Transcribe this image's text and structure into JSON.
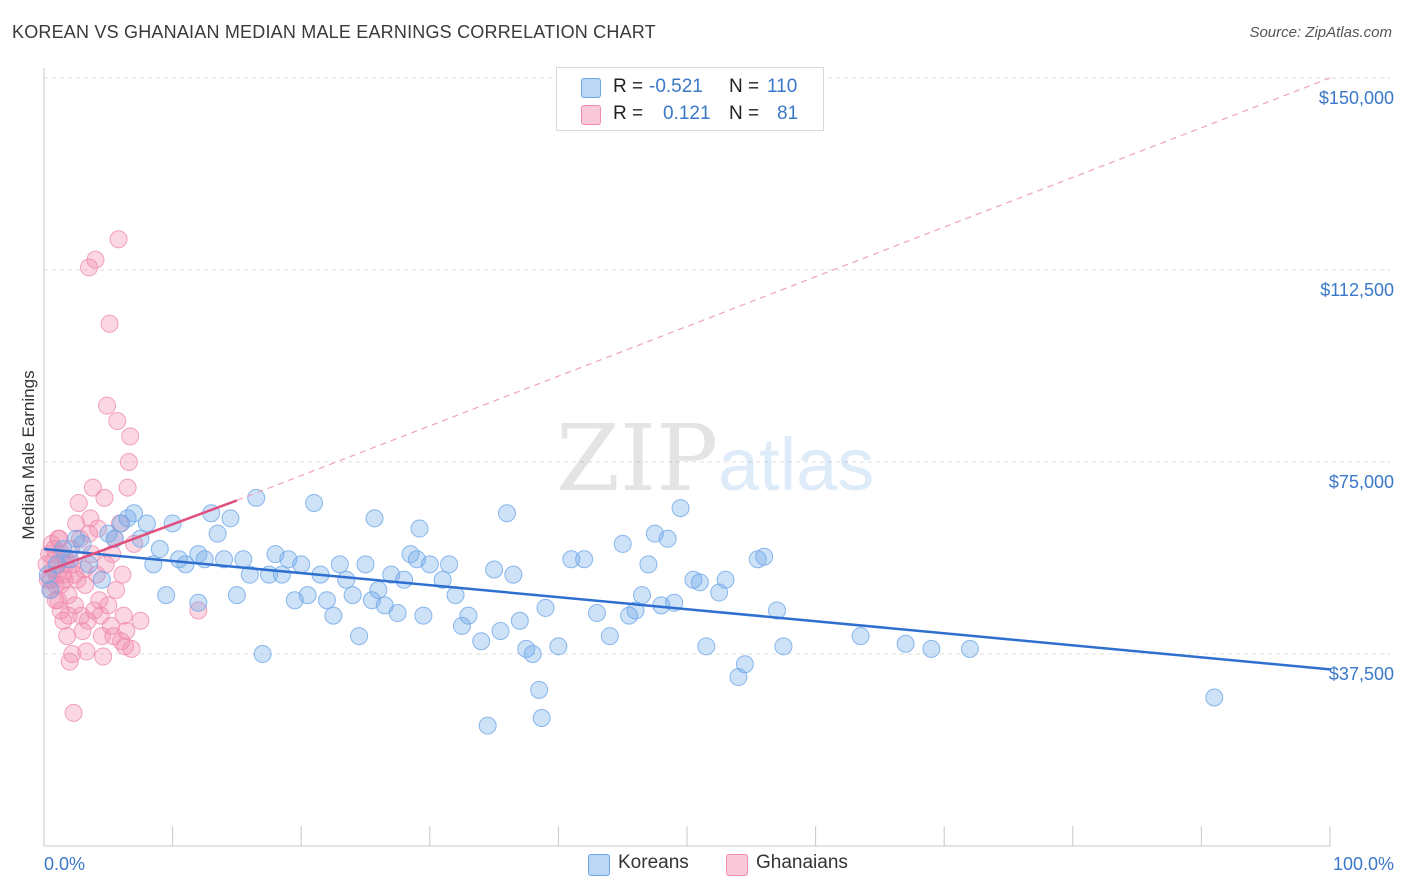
{
  "header": {
    "title": "KOREAN VS GHANAIAN MEDIAN MALE EARNINGS CORRELATION CHART",
    "source": "Source: ZipAtlas.com"
  },
  "watermark": {
    "zip": "ZIP",
    "atlas": "atlas"
  },
  "legend": {
    "rows": [
      {
        "r_label": "R =",
        "r_value": "-0.521",
        "n_label": "N =",
        "n_value": "110",
        "color": "#6fa8e8"
      },
      {
        "r_label": "R =",
        "r_value": "0.121",
        "n_label": "N =",
        "n_value": "81",
        "color": "#f08cb0"
      }
    ]
  },
  "bottom_legend": {
    "koreans": "Koreans",
    "ghanaians": "Ghanaians"
  },
  "chart_data": {
    "type": "scatter",
    "ylabel": "Median Male Earnings",
    "x_tick_labels": [
      "0.0%",
      "100.0%"
    ],
    "y_tick_labels": [
      "$150,000",
      "$112,500",
      "$75,000",
      "$37,500"
    ],
    "y_ticks": [
      150000,
      112500,
      75000,
      37500
    ],
    "xlim": [
      0,
      100
    ],
    "ylim": [
      0,
      155000
    ],
    "grid": "horizontal dashed",
    "colors": {
      "koreans": "#6fa8e8",
      "koreans_line": "#2e6fd0",
      "ghanaians": "#f08cb0",
      "ghanaians_line": "#e0507f"
    },
    "series": [
      {
        "name": "Koreans",
        "trend": {
          "x0": 0,
          "y0": 58000,
          "x1": 100,
          "y1": 34500
        },
        "points": [
          [
            0.5,
            50000
          ],
          [
            1,
            55000
          ],
          [
            1.5,
            58000
          ],
          [
            2,
            56000
          ],
          [
            2.5,
            60000
          ],
          [
            3,
            59000
          ],
          [
            3.5,
            55000
          ],
          [
            4.5,
            52000
          ],
          [
            5,
            61000
          ],
          [
            5.5,
            60000
          ],
          [
            6,
            63000
          ],
          [
            6.5,
            64000
          ],
          [
            7,
            65000
          ],
          [
            7.5,
            60000
          ],
          [
            8,
            63000
          ],
          [
            8.5,
            55000
          ],
          [
            9,
            58000
          ],
          [
            9.5,
            49000
          ],
          [
            10,
            63000
          ],
          [
            10.5,
            56000
          ],
          [
            11,
            55000
          ],
          [
            12,
            57000
          ],
          [
            12.5,
            56000
          ],
          [
            12,
            47500
          ],
          [
            13,
            65000
          ],
          [
            13.5,
            61000
          ],
          [
            14,
            56000
          ],
          [
            14.5,
            64000
          ],
          [
            15,
            49000
          ],
          [
            15.5,
            56000
          ],
          [
            16,
            53000
          ],
          [
            16.5,
            68000
          ],
          [
            17,
            37500
          ],
          [
            17.5,
            53000
          ],
          [
            18,
            57000
          ],
          [
            18.5,
            53000
          ],
          [
            19,
            56000
          ],
          [
            19.5,
            48000
          ],
          [
            20,
            55000
          ],
          [
            20.5,
            49000
          ],
          [
            21,
            67000
          ],
          [
            21.5,
            53000
          ],
          [
            22,
            48000
          ],
          [
            22.5,
            45000
          ],
          [
            23,
            55000
          ],
          [
            23.5,
            52000
          ],
          [
            24,
            49000
          ],
          [
            24.5,
            41000
          ],
          [
            25,
            55000
          ],
          [
            25.5,
            48000
          ],
          [
            25.7,
            64000
          ],
          [
            26,
            50000
          ],
          [
            26.5,
            47000
          ],
          [
            27,
            53000
          ],
          [
            27.5,
            45500
          ],
          [
            28,
            52000
          ],
          [
            28.5,
            57000
          ],
          [
            29,
            56000
          ],
          [
            29.5,
            45000
          ],
          [
            29.2,
            62000
          ],
          [
            30,
            55000
          ],
          [
            31,
            52000
          ],
          [
            31.5,
            55000
          ],
          [
            32,
            49000
          ],
          [
            32.5,
            43000
          ],
          [
            33,
            45000
          ],
          [
            34,
            40000
          ],
          [
            34.5,
            23500
          ],
          [
            35,
            54000
          ],
          [
            35.5,
            42000
          ],
          [
            36,
            65000
          ],
          [
            36.5,
            53000
          ],
          [
            37,
            44000
          ],
          [
            37.5,
            38500
          ],
          [
            38,
            37500
          ],
          [
            38.5,
            30500
          ],
          [
            38.7,
            25000
          ],
          [
            39,
            46500
          ],
          [
            40,
            39000
          ],
          [
            41,
            56000
          ],
          [
            42,
            56000
          ],
          [
            43,
            45500
          ],
          [
            44,
            41000
          ],
          [
            45,
            59000
          ],
          [
            45.5,
            45000
          ],
          [
            46,
            46000
          ],
          [
            46.5,
            49000
          ],
          [
            47,
            55000
          ],
          [
            47.5,
            61000
          ],
          [
            48,
            47000
          ],
          [
            48.5,
            60000
          ],
          [
            49,
            47500
          ],
          [
            49.5,
            66000
          ],
          [
            50.5,
            52000
          ],
          [
            51,
            51500
          ],
          [
            51.5,
            39000
          ],
          [
            52.5,
            49500
          ],
          [
            53,
            52000
          ],
          [
            54,
            33000
          ],
          [
            54.5,
            35500
          ],
          [
            55.5,
            56000
          ],
          [
            56,
            56500
          ],
          [
            57,
            46000
          ],
          [
            57.5,
            39000
          ],
          [
            63.5,
            41000
          ],
          [
            67,
            39500
          ],
          [
            69,
            38500
          ],
          [
            72,
            38500
          ],
          [
            91,
            29000
          ],
          [
            0.3,
            53000
          ]
        ]
      },
      {
        "name": "Ghanaians",
        "trend": {
          "x0": 0,
          "y0": 53500,
          "x1": 15,
          "y1": 67500,
          "dash_x1": 100,
          "dash_y1": 150000
        },
        "points": [
          [
            0.2,
            55000
          ],
          [
            0.3,
            52000
          ],
          [
            0.4,
            57000
          ],
          [
            0.5,
            50000
          ],
          [
            0.6,
            59000
          ],
          [
            0.7,
            54000
          ],
          [
            0.8,
            56000
          ],
          [
            0.9,
            51000
          ],
          [
            1,
            53000
          ],
          [
            1.1,
            48000
          ],
          [
            1.2,
            60000
          ],
          [
            1.3,
            46000
          ],
          [
            1.4,
            57000
          ],
          [
            1.5,
            44000
          ],
          [
            1.6,
            52000
          ],
          [
            1.7,
            55000
          ],
          [
            1.8,
            41000
          ],
          [
            1.9,
            49000
          ],
          [
            2,
            36000
          ],
          [
            2.1,
            58000
          ],
          [
            2.2,
            37500
          ],
          [
            2.3,
            26000
          ],
          [
            2.4,
            47000
          ],
          [
            2.5,
            63000
          ],
          [
            2.6,
            52000
          ],
          [
            2.7,
            67000
          ],
          [
            2.8,
            60000
          ],
          [
            2.9,
            45000
          ],
          [
            3,
            42000
          ],
          [
            3.1,
            54000
          ],
          [
            3.2,
            51000
          ],
          [
            3.3,
            38000
          ],
          [
            3.4,
            44000
          ],
          [
            3.5,
            113000
          ],
          [
            3.6,
            64000
          ],
          [
            3.7,
            57000
          ],
          [
            3.8,
            70000
          ],
          [
            3.9,
            46000
          ],
          [
            4,
            114500
          ],
          [
            4.1,
            53000
          ],
          [
            4.2,
            62000
          ],
          [
            4.3,
            48000
          ],
          [
            4.4,
            45000
          ],
          [
            4.5,
            41000
          ],
          [
            4.6,
            37000
          ],
          [
            4.7,
            68000
          ],
          [
            4.8,
            55000
          ],
          [
            4.9,
            86000
          ],
          [
            5,
            47000
          ],
          [
            5.1,
            102000
          ],
          [
            5.2,
            43000
          ],
          [
            5.3,
            57000
          ],
          [
            5.4,
            41000
          ],
          [
            5.5,
            60000
          ],
          [
            5.6,
            50000
          ],
          [
            5.7,
            83000
          ],
          [
            5.8,
            118500
          ],
          [
            5.9,
            63000
          ],
          [
            6,
            40000
          ],
          [
            6.1,
            53000
          ],
          [
            6.2,
            45000
          ],
          [
            6.3,
            39000
          ],
          [
            6.4,
            42000
          ],
          [
            6.5,
            70000
          ],
          [
            6.6,
            75000
          ],
          [
            6.7,
            80000
          ],
          [
            6.8,
            38500
          ],
          [
            7,
            59000
          ],
          [
            7.5,
            44000
          ],
          [
            12,
            46000
          ],
          [
            0.8,
            58000
          ],
          [
            1.5,
            53000
          ],
          [
            0.9,
            48000
          ],
          [
            1.3,
            51000
          ],
          [
            1.7,
            56000
          ],
          [
            2.2,
            55000
          ],
          [
            1.1,
            60000
          ],
          [
            0.5,
            52000
          ],
          [
            1.9,
            45000
          ],
          [
            3.5,
            61000
          ],
          [
            2.4,
            53000
          ]
        ]
      }
    ]
  }
}
